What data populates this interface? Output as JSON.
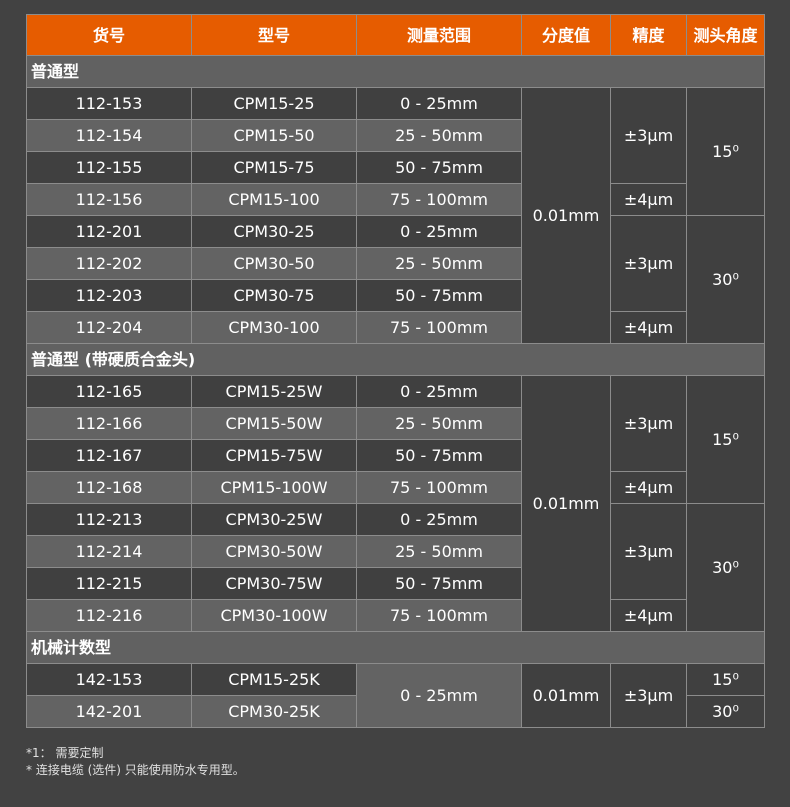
{
  "header": [
    "货号",
    "型号",
    "测量范围",
    "分度值",
    "精度",
    "测头角度"
  ],
  "sections": [
    {
      "title": "普通型",
      "items": [
        "112-153",
        "112-154",
        "112-155",
        "112-156",
        "112-201",
        "112-202",
        "112-203",
        "112-204"
      ],
      "models": [
        "CPM15-25",
        "CPM15-50",
        "CPM15-75",
        "CPM15-100",
        "CPM30-25",
        "CPM30-50",
        "CPM30-75",
        "CPM30-100"
      ],
      "range": [
        {
          "value": "0 - 25mm",
          "rows": 1
        },
        {
          "value": "25 - 50mm",
          "rows": 1
        },
        {
          "value": "50 - 75mm",
          "rows": 1
        },
        {
          "value": "75 - 100mm",
          "rows": 1
        },
        {
          "value": "0 - 25mm",
          "rows": 1
        },
        {
          "value": "25 - 50mm",
          "rows": 1
        },
        {
          "value": "50 - 75mm",
          "rows": 1
        },
        {
          "value": "75 - 100mm",
          "rows": 1
        }
      ],
      "resolution": [
        {
          "value": "0.01mm",
          "rows": 8
        }
      ],
      "accuracy": [
        {
          "value": "±3μm",
          "rows": 3
        },
        {
          "value": "±4μm",
          "rows": 1
        },
        {
          "value": "±3μm",
          "rows": 3
        },
        {
          "value": "±4μm",
          "rows": 1
        }
      ],
      "angle": [
        {
          "value": "15⁰",
          "rows": 4
        },
        {
          "value": "30⁰",
          "rows": 4
        }
      ]
    },
    {
      "title": "普通型 (带硬质合金头)",
      "items": [
        "112-165",
        "112-166",
        "112-167",
        "112-168",
        "112-213",
        "112-214",
        "112-215",
        "112-216"
      ],
      "models": [
        "CPM15-25W",
        "CPM15-50W",
        "CPM15-75W",
        "CPM15-100W",
        "CPM30-25W",
        "CPM30-50W",
        "CPM30-75W",
        "CPM30-100W"
      ],
      "range": [
        {
          "value": "0 - 25mm",
          "rows": 1
        },
        {
          "value": "25 - 50mm",
          "rows": 1
        },
        {
          "value": "50 - 75mm",
          "rows": 1
        },
        {
          "value": "75 - 100mm",
          "rows": 1
        },
        {
          "value": "0 - 25mm",
          "rows": 1
        },
        {
          "value": "25 - 50mm",
          "rows": 1
        },
        {
          "value": "50 - 75mm",
          "rows": 1
        },
        {
          "value": "75 - 100mm",
          "rows": 1
        }
      ],
      "resolution": [
        {
          "value": "0.01mm",
          "rows": 8
        }
      ],
      "accuracy": [
        {
          "value": "±3μm",
          "rows": 3
        },
        {
          "value": "±4μm",
          "rows": 1
        },
        {
          "value": "±3μm",
          "rows": 3
        },
        {
          "value": "±4μm",
          "rows": 1
        }
      ],
      "angle": [
        {
          "value": "15⁰",
          "rows": 4
        },
        {
          "value": "30⁰",
          "rows": 4
        }
      ]
    },
    {
      "title": "机械计数型",
      "items": [
        "142-153",
        "142-201"
      ],
      "models": [
        "CPM15-25K",
        "CPM30-25K"
      ],
      "range": [
        {
          "value": "0 - 25mm",
          "rows": 2
        }
      ],
      "resolution": [
        {
          "value": "0.01mm",
          "rows": 2
        }
      ],
      "accuracy": [
        {
          "value": "±3μm",
          "rows": 2
        }
      ],
      "angle": [
        {
          "value": "15⁰",
          "rows": 1
        },
        {
          "value": "30⁰",
          "rows": 1
        }
      ]
    }
  ],
  "notes": [
    "*1： 需要定制",
    "* 连接电缆 (选件) 只能使用防水专用型。"
  ],
  "colors": {
    "header": "#e65c00",
    "background": "#424242",
    "row_dark": "#404040",
    "row_light": "#636363",
    "section": "#616161"
  }
}
